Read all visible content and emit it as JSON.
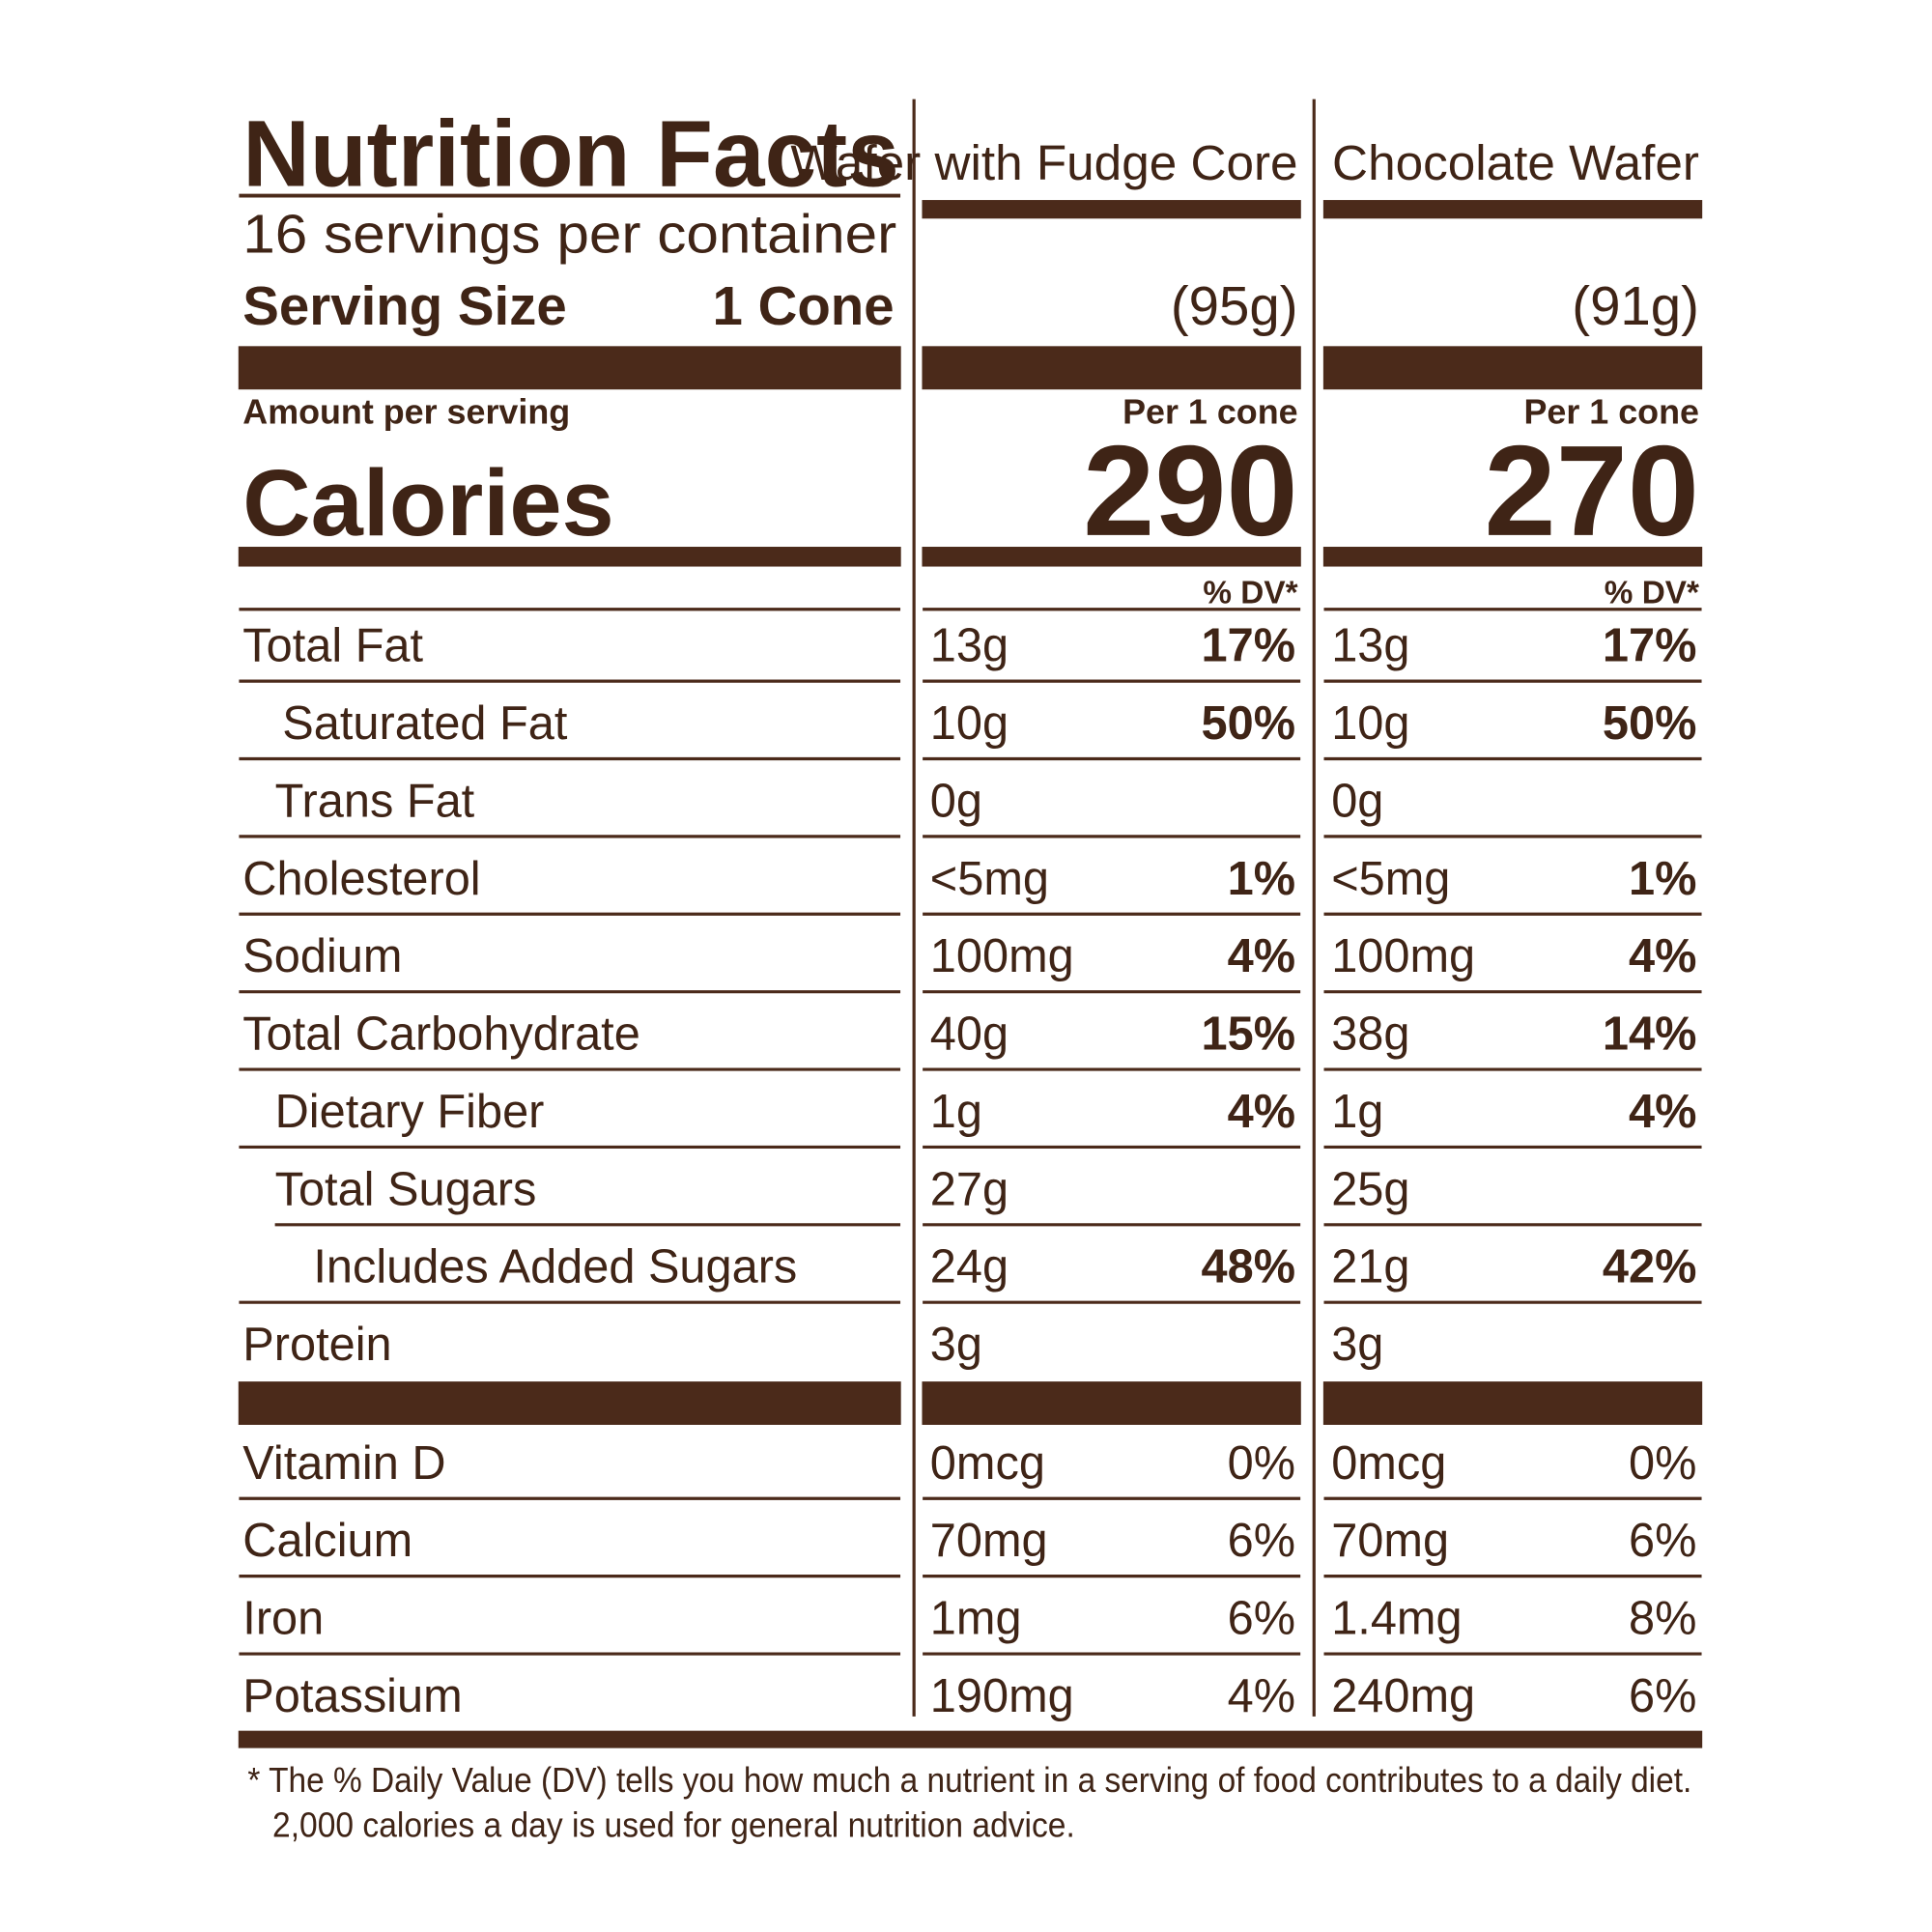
{
  "title": "Nutrition Facts",
  "servings": "16 servings per container",
  "serving_size_label": "Serving Size",
  "serving_size_value": "1 Cone",
  "amount_per_serving": "Amount per serving",
  "calories_label": "Calories",
  "products": [
    {
      "name": "Wafer with Fudge Core",
      "weight": "(95g)",
      "per": "Per 1 cone",
      "calories": "290",
      "dv_header": "% DV*"
    },
    {
      "name": "Chocolate Wafer",
      "weight": "(91g)",
      "per": "Per 1 cone",
      "calories": "270",
      "dv_header": "% DV*"
    }
  ],
  "nutrients": [
    {
      "label": "Total Fat",
      "values": [
        {
          "amount": "13g",
          "dv": "17%"
        },
        {
          "amount": "13g",
          "dv": "17%"
        }
      ],
      "sub": [
        {
          "label": "Saturated Fat",
          "values": [
            {
              "amount": "10g",
              "dv": "50%"
            },
            {
              "amount": "10g",
              "dv": "50%"
            }
          ]
        },
        {
          "label": "Trans Fat",
          "values": [
            {
              "amount": "0g"
            },
            {
              "amount": "0g"
            }
          ]
        }
      ]
    },
    {
      "label": "Cholesterol",
      "values": [
        {
          "amount": "<5mg",
          "dv": "1%"
        },
        {
          "amount": "<5mg",
          "dv": "1%"
        }
      ]
    },
    {
      "label": "Sodium",
      "values": [
        {
          "amount": "100mg",
          "dv": "4%"
        },
        {
          "amount": "100mg",
          "dv": "4%"
        }
      ]
    },
    {
      "label": "Total Carbohydrate",
      "values": [
        {
          "amount": "40g",
          "dv": "15%"
        },
        {
          "amount": "38g",
          "dv": "14%"
        }
      ],
      "sub": [
        {
          "label": "Dietary Fiber",
          "values": [
            {
              "amount": "1g",
              "dv": "4%"
            },
            {
              "amount": "1g",
              "dv": "4%"
            }
          ]
        },
        {
          "label": "Total Sugars",
          "values": [
            {
              "amount": "27g"
            },
            {
              "amount": "25g"
            }
          ],
          "sub": [
            {
              "label": "Includes Added Sugars",
              "values": [
                {
                  "amount": "24g",
                  "dv": "48%"
                },
                {
                  "amount": "21g",
                  "dv": "42%"
                }
              ]
            }
          ]
        }
      ]
    },
    {
      "label": "Protein",
      "values": [
        {
          "amount": "3g"
        },
        {
          "amount": "3g"
        }
      ]
    }
  ],
  "vitamins": [
    {
      "label": "Vitamin D",
      "values": [
        {
          "amount": "0mcg",
          "dv": "0%"
        },
        {
          "amount": "0mcg",
          "dv": "0%"
        }
      ]
    },
    {
      "label": "Calcium",
      "values": [
        {
          "amount": "70mg",
          "dv": "6%"
        },
        {
          "amount": "70mg",
          "dv": "6%"
        }
      ]
    },
    {
      "label": "Iron",
      "values": [
        {
          "amount": "1mg",
          "dv": "6%"
        },
        {
          "amount": "1.4mg",
          "dv": "8%"
        }
      ]
    },
    {
      "label": "Potassium",
      "values": [
        {
          "amount": "190mg",
          "dv": "4%"
        },
        {
          "amount": "240mg",
          "dv": "6%"
        }
      ]
    }
  ],
  "footnote": [
    "* The % Daily Value (DV) tells you how much a nutrient in a serving of food contributes to a daily diet.",
    "2,000 calories a day is used for general nutrition advice."
  ]
}
